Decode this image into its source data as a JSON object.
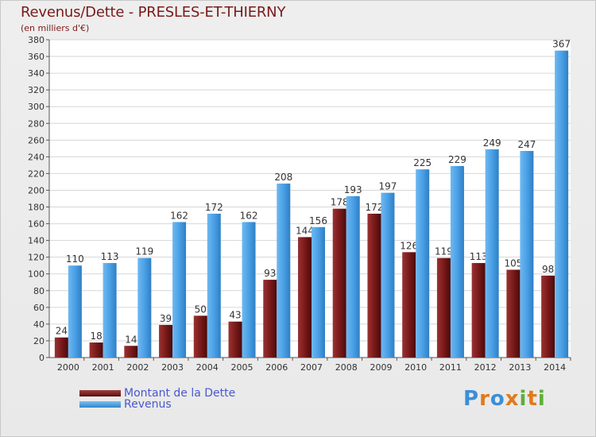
{
  "header": {
    "title": "Revenus/Dette - PRESLES-ET-THIERNY",
    "subtitle": "(en milliers d'€)"
  },
  "legend": {
    "debt_label": "Montant de la Dette",
    "revenue_label": "Revenus"
  },
  "logo": {
    "text": "Proxiti"
  },
  "colors": {
    "debt": "#7a1a1a",
    "revenue": "#4aa0e6",
    "title": "#7a1a1a",
    "legend_text": "#4a57d0"
  },
  "chart_data": {
    "type": "bar",
    "title": "Revenus/Dette - PRESLES-ET-THIERNY",
    "ylabel": "(en milliers d'€)",
    "xlabel": "",
    "ylim": [
      0,
      380
    ],
    "ytick_step": 20,
    "grid": true,
    "legend_position": "bottom-left",
    "categories": [
      "2000",
      "2001",
      "2002",
      "2003",
      "2004",
      "2005",
      "2006",
      "2007",
      "2008",
      "2009",
      "2010",
      "2011",
      "2012",
      "2013",
      "2014"
    ],
    "series": [
      {
        "name": "Montant de la Dette",
        "values": [
          24,
          18,
          14,
          39,
          50,
          43,
          93,
          144,
          178,
          172,
          126,
          119,
          113,
          105,
          98
        ]
      },
      {
        "name": "Revenus",
        "values": [
          110,
          113,
          119,
          162,
          172,
          162,
          208,
          156,
          193,
          197,
          225,
          229,
          249,
          247,
          367
        ]
      }
    ]
  }
}
